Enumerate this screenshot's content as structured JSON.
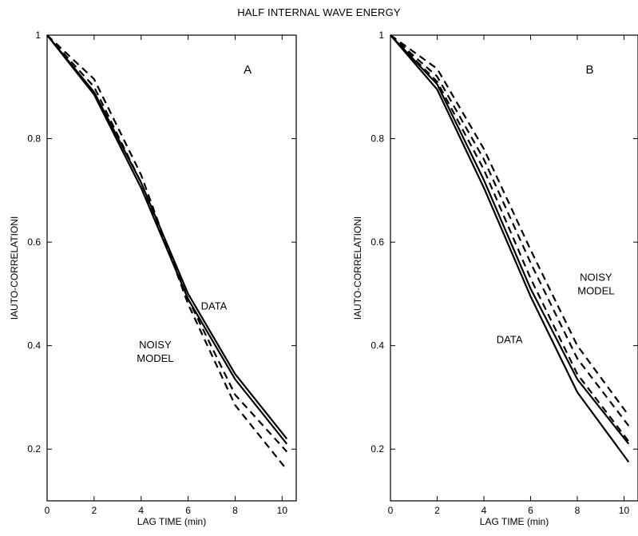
{
  "figure_title": "HALF INTERNAL WAVE ENERGY",
  "chart_data": [
    {
      "type": "line",
      "panel_label": "A",
      "xlabel": "LAG TIME (min)",
      "ylabel": "IAUTO-CORRELATIONI",
      "xlim": [
        0,
        10.6
      ],
      "ylim": [
        0.1,
        1.0
      ],
      "xticks": [
        0,
        2,
        4,
        6,
        8,
        10
      ],
      "yticks": [
        0.2,
        0.4,
        0.6,
        0.8,
        1
      ],
      "ytick_labels": [
        "0.2",
        "0.4",
        "0.6",
        "0.8",
        "1"
      ],
      "series": [
        {
          "style": "solid",
          "x": [
            0,
            2,
            4,
            6,
            8,
            10.2
          ],
          "y": [
            1.0,
            0.885,
            0.705,
            0.49,
            0.335,
            0.21
          ]
        },
        {
          "style": "solid",
          "x": [
            0,
            2,
            4,
            6,
            8,
            10.2
          ],
          "y": [
            1.0,
            0.89,
            0.715,
            0.5,
            0.345,
            0.22
          ]
        },
        {
          "style": "dashed",
          "x": [
            0,
            2,
            4,
            6,
            8,
            10.2
          ],
          "y": [
            1.0,
            0.9,
            0.715,
            0.49,
            0.305,
            0.195
          ]
        },
        {
          "style": "dashed",
          "x": [
            0,
            2,
            4,
            6,
            8,
            10.2
          ],
          "y": [
            1.0,
            0.915,
            0.73,
            0.48,
            0.285,
            0.16
          ]
        }
      ],
      "annotations": [
        {
          "lines": [
            "DATA"
          ],
          "x": 7.1,
          "y": 0.47
        },
        {
          "lines": [
            "NOISY",
            "MODEL"
          ],
          "x": 4.6,
          "y": 0.395
        }
      ]
    },
    {
      "type": "line",
      "panel_label": "B",
      "xlabel": "LAG TIME (min)",
      "ylabel": "IAUTO-CORRELATIONI",
      "xlim": [
        0,
        10.6
      ],
      "ylim": [
        0.1,
        1.0
      ],
      "xticks": [
        0,
        2,
        4,
        6,
        8,
        10
      ],
      "yticks": [
        0.2,
        0.4,
        0.6,
        0.8,
        1
      ],
      "ytick_labels": [
        "0.2",
        "0.4",
        "0.6",
        "0.8",
        "1"
      ],
      "series": [
        {
          "style": "solid",
          "x": [
            0,
            2,
            4,
            6,
            8,
            10.2
          ],
          "y": [
            1.0,
            0.895,
            0.705,
            0.495,
            0.31,
            0.175
          ]
        },
        {
          "style": "solid",
          "x": [
            0,
            2,
            4,
            6,
            8,
            10.2
          ],
          "y": [
            1.0,
            0.905,
            0.72,
            0.51,
            0.335,
            0.21
          ]
        },
        {
          "style": "dashed",
          "x": [
            0,
            2,
            4,
            6,
            8,
            10.2
          ],
          "y": [
            1.0,
            0.91,
            0.74,
            0.53,
            0.345,
            0.215
          ]
        },
        {
          "style": "dashed",
          "x": [
            0,
            2,
            4,
            6,
            8,
            10.2
          ],
          "y": [
            1.0,
            0.92,
            0.76,
            0.56,
            0.375,
            0.245
          ]
        },
        {
          "style": "dashed",
          "x": [
            0,
            2,
            4,
            6,
            8,
            10.2
          ],
          "y": [
            1.0,
            0.935,
            0.78,
            0.585,
            0.4,
            0.265
          ]
        }
      ],
      "annotations": [
        {
          "lines": [
            "NOISY",
            "MODEL"
          ],
          "x": 8.8,
          "y": 0.525
        },
        {
          "lines": [
            "DATA"
          ],
          "x": 5.1,
          "y": 0.405
        }
      ]
    }
  ]
}
